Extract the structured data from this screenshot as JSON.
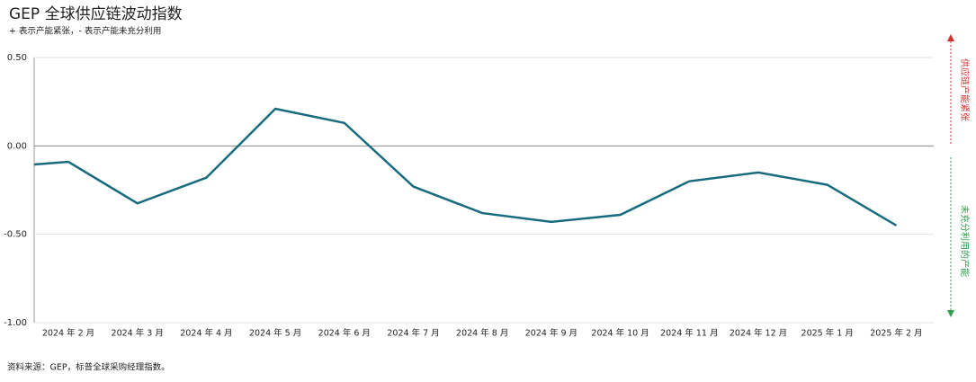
{
  "chart_data": {
    "type": "line",
    "title": "GEP 全球供应链波动指数",
    "subtitle": "+ 表示产能紧张，- 表示产能未充分利用",
    "source": "资料来源：GEP，标普全球采购经理指数。",
    "annotations": [
      "供应链产能紧张",
      "未充分利用的产能"
    ],
    "categories": [
      null,
      "2024 年 2 月",
      "2024 年 3 月",
      "2024 年 4 月",
      "2024 年 5 月",
      "2024 年 6 月",
      "2024 年 7 月",
      "2024 年 8 月",
      "2024 年 9 月",
      "2024 年 10 月",
      "2024 年 11 月",
      "2024 年 12 月",
      "2025 年 1 月",
      "2025 年 2 月"
    ],
    "values": [
      -0.12,
      -0.09,
      -0.325,
      -0.18,
      0.21,
      0.13,
      -0.23,
      -0.38,
      -0.43,
      -0.39,
      -0.2,
      -0.15,
      -0.22,
      -0.45
    ],
    "color": "#176b7e",
    "ylim": [
      -1.0,
      0.5
    ],
    "yticks": [
      {
        "value": 0.5,
        "label": "0.50"
      },
      {
        "value": 0,
        "label": "0.00"
      },
      {
        "value": -0.5,
        "label": "-0.50"
      },
      {
        "value": -1.0,
        "label": "-1.00"
      }
    ],
    "grid": true
  }
}
